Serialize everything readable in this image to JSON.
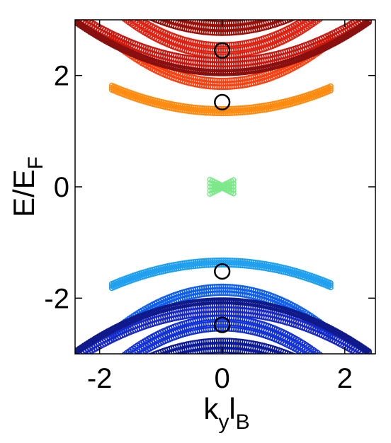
{
  "chart_data": {
    "type": "scatter",
    "title": "",
    "xlabel": {
      "main": "k",
      "sub1": "y",
      "mid": "l",
      "sub2": "B"
    },
    "ylabel": {
      "main": "E/E",
      "sub": "F"
    },
    "xlim": [
      -2.4,
      2.5
    ],
    "ylim": [
      -3,
      3
    ],
    "x_ticks": [
      -2,
      0,
      2
    ],
    "x_tick_labels": [
      "-2",
      "0",
      "2"
    ],
    "y_ticks": [
      -2,
      0,
      2
    ],
    "y_tick_labels": [
      "-2",
      "0",
      "2"
    ],
    "grid": false,
    "legend": "none",
    "marker": "open-circle",
    "bands": [
      {
        "k_range": [
          -0.2,
          0.2
        ],
        "E_center": 0.0,
        "curvature": 0.0,
        "width": 0.35,
        "color": "#7ee88a",
        "sign": 1,
        "shape": "hourglass"
      },
      {
        "k_range": [
          -1.8,
          1.8
        ],
        "E_center": 1.36,
        "curvature": 0.13,
        "width": 0.08,
        "color": "#ff8c10",
        "sign": 1
      },
      {
        "k_range": [
          -1.8,
          1.8
        ],
        "E_center": -1.36,
        "curvature": 0.13,
        "width": 0.08,
        "color": "#20a0ef",
        "sign": -1
      },
      {
        "k_range": [
          -1.8,
          1.8
        ],
        "E_center": 1.85,
        "curvature": 0.25,
        "width": 0.12,
        "color": "#ff4010",
        "sign": 1
      },
      {
        "k_range": [
          -1.8,
          1.8
        ],
        "E_center": -1.85,
        "curvature": 0.25,
        "width": 0.12,
        "color": "#1060ef",
        "sign": -1
      },
      {
        "k_range": [
          -2.4,
          2.4
        ],
        "E_center": 2.45,
        "curvature": 0.26,
        "width": 0.2,
        "color": "#e02010",
        "sign": 1
      },
      {
        "k_range": [
          -2.4,
          2.4
        ],
        "E_center": -2.45,
        "curvature": 0.26,
        "width": 0.2,
        "color": "#1030d8",
        "sign": -1
      },
      {
        "k_range": [
          -2.4,
          2.4
        ],
        "E_center": 2.2,
        "curvature": 0.15,
        "width": 0.15,
        "color": "#c81810",
        "sign": 1
      },
      {
        "k_range": [
          -2.4,
          2.4
        ],
        "E_center": -2.2,
        "curvature": 0.15,
        "width": 0.15,
        "color": "#1828c8",
        "sign": -1
      },
      {
        "k_range": [
          -2.4,
          2.4
        ],
        "E_center": 2.85,
        "curvature": 0.2,
        "width": 0.18,
        "color": "#9a1008",
        "sign": 1
      },
      {
        "k_range": [
          -2.4,
          2.4
        ],
        "E_center": -2.85,
        "curvature": 0.2,
        "width": 0.18,
        "color": "#0c1a9a",
        "sign": -1
      },
      {
        "k_range": [
          -2.4,
          2.4
        ],
        "E_center": 2.05,
        "curvature": 0.16,
        "width": 0.03,
        "color": "#8a1010",
        "sign": 1
      },
      {
        "k_range": [
          -2.4,
          2.4
        ],
        "E_center": -2.05,
        "curvature": 0.16,
        "width": 0.03,
        "color": "#101a8a",
        "sign": -1
      }
    ],
    "annotations": [
      {
        "type": "circle",
        "x": 0,
        "y": 2.45,
        "r": 0.12
      },
      {
        "type": "circle",
        "x": 0,
        "y": 1.52,
        "r": 0.12
      },
      {
        "type": "circle",
        "x": 0,
        "y": -1.52,
        "r": 0.12
      },
      {
        "type": "circle",
        "x": 0,
        "y": -2.48,
        "r": 0.12
      }
    ]
  }
}
